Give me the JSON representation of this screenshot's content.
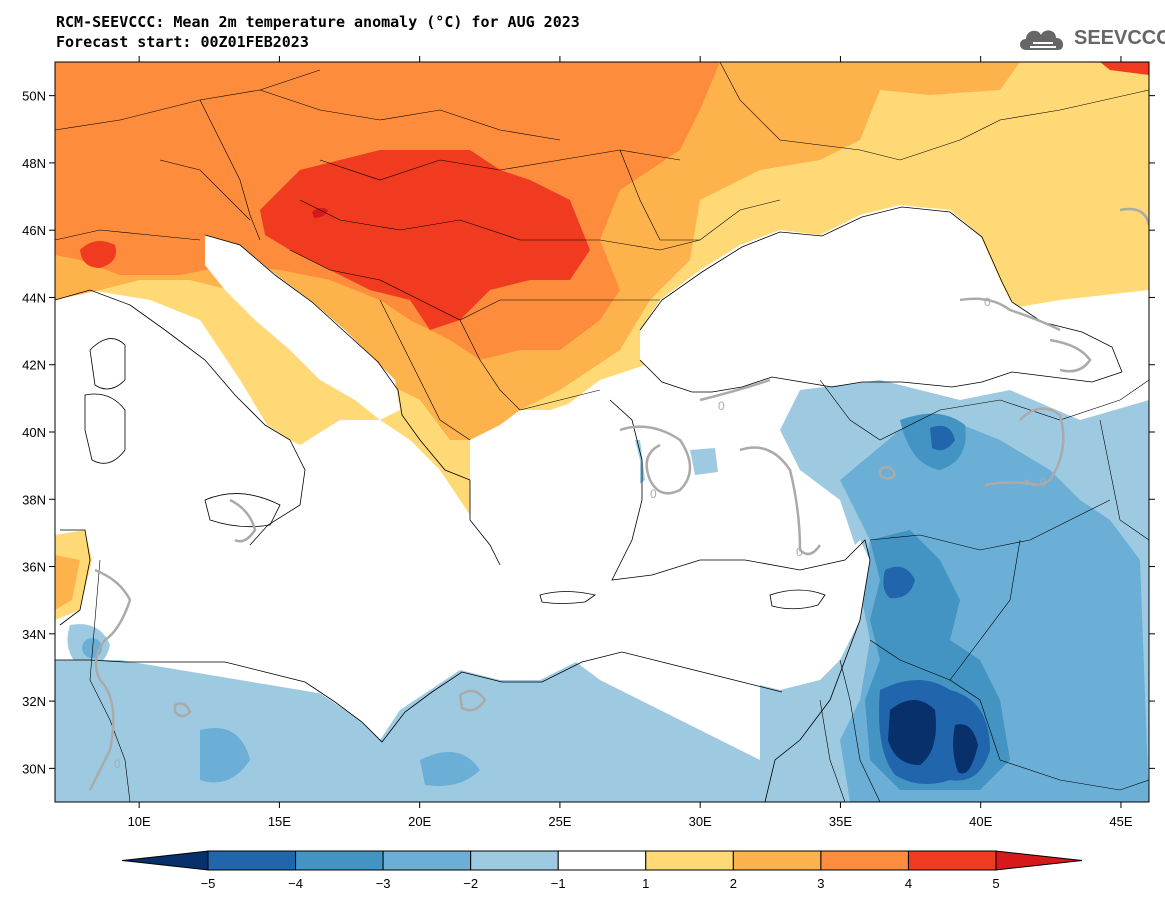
{
  "header": {
    "title_line1": "RCM-SEEVCCC: Mean 2m temperature anomaly (°C) for AUG 2023",
    "title_line2": "Forecast start: 00Z01FEB2023"
  },
  "logo": {
    "text": "SEEVCCC",
    "icon": "cloud-icon"
  },
  "map": {
    "lon_range": [
      7,
      46
    ],
    "lat_range": [
      29,
      51
    ],
    "lon_ticks": [
      "10E",
      "15E",
      "20E",
      "25E",
      "30E",
      "35E",
      "40E",
      "45E"
    ],
    "lat_ticks": [
      "50N",
      "48N",
      "46N",
      "44N",
      "42N",
      "40N",
      "38N",
      "36N",
      "34N",
      "32N",
      "30N"
    ]
  },
  "colorbar": {
    "labels": [
      "−5",
      "−4",
      "−3",
      "−2",
      "−1",
      "1",
      "2",
      "3",
      "4",
      "5"
    ],
    "colors": [
      "#08306b",
      "#2166ac",
      "#4393c3",
      "#6baed6",
      "#9ecae1",
      "#ffffff",
      "#fed976",
      "#feb24c",
      "#fd8d3c",
      "#f03b20",
      "#d7191c"
    ]
  }
}
